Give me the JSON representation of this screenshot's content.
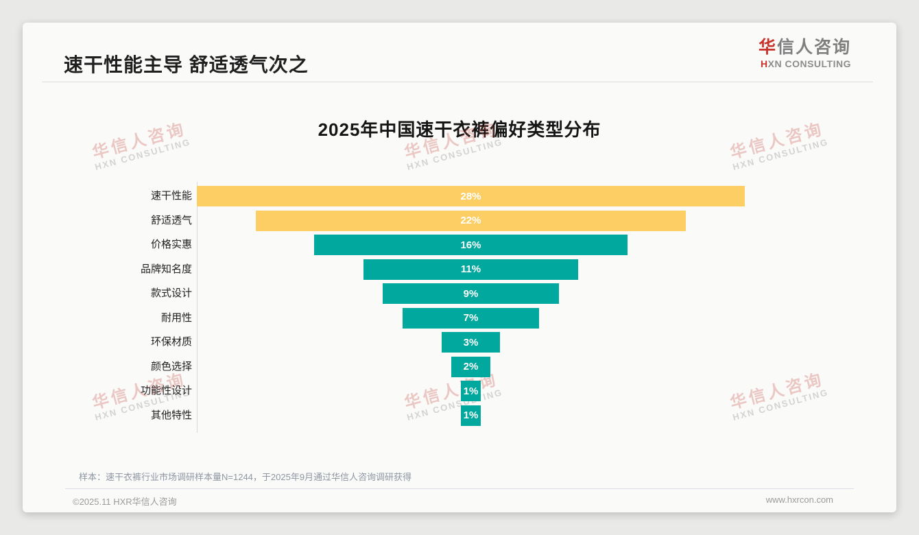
{
  "page_title": "速干性能主导 舒适透气次之",
  "logo": {
    "cn_accent": "华",
    "cn_rest": "信人咨询",
    "en_accent": "H",
    "en_rest": "XN CONSULTING"
  },
  "watermark": {
    "cn": "华信人咨询",
    "en": "HXN CONSULTING"
  },
  "sample_note": "样本：速干衣裤行业市场调研样本量N=1244，于2025年9月通过华信人咨询调研获得",
  "footer": {
    "copyright": "©2025.11 HXR华信人咨询",
    "website": "www.hxrcon.com"
  },
  "colors": {
    "accent_red": "#c8342b",
    "bar_highlight": "#FCCE63",
    "bar_default": "#00A89D",
    "bar_value_text": "#ffffff"
  },
  "chart_data": {
    "type": "bar",
    "variant": "horizontal-centered-funnel",
    "title": "2025年中国速干衣裤偏好类型分布",
    "categories": [
      "速干性能",
      "舒适透气",
      "价格实惠",
      "品牌知名度",
      "款式设计",
      "耐用性",
      "环保材质",
      "颜色选择",
      "功能性设计",
      "其他特性"
    ],
    "values": [
      28,
      22,
      16,
      11,
      9,
      7,
      3,
      2,
      1,
      1
    ],
    "value_labels": [
      "28%",
      "22%",
      "16%",
      "11%",
      "9%",
      "7%",
      "3%",
      "2%",
      "1%",
      "1%"
    ],
    "unit": "%",
    "xlim": [
      0,
      28
    ],
    "highlight_count": 2,
    "bar_colors": {
      "top2": "#FCCE63",
      "rest": "#00A89D"
    },
    "legend": "none",
    "grid": "off"
  }
}
